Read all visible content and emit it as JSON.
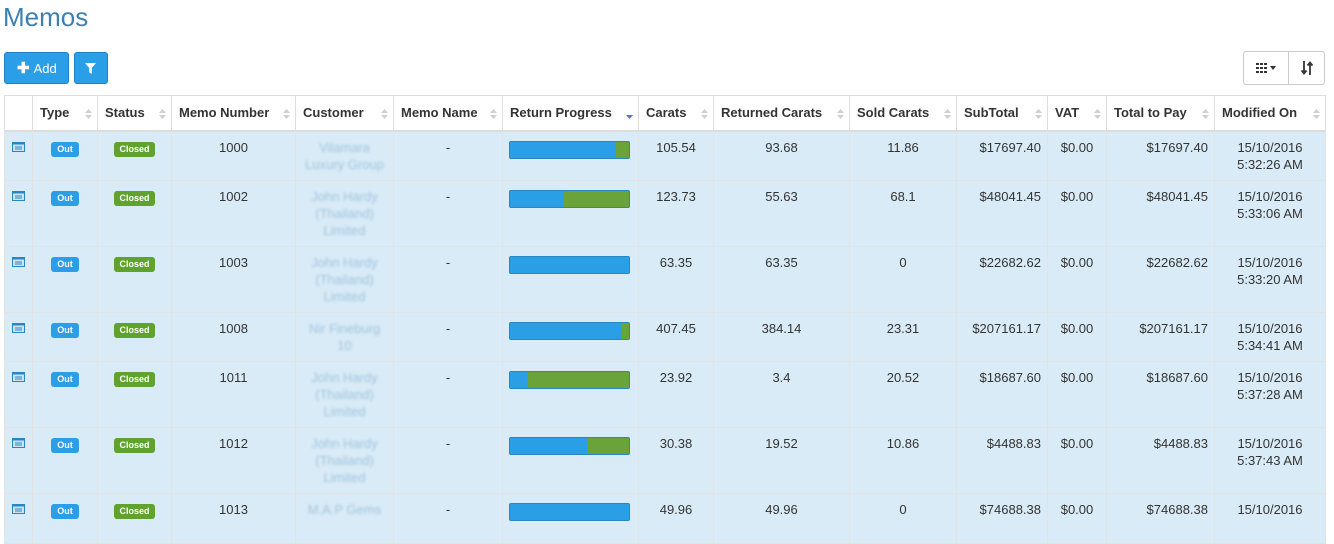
{
  "page": {
    "title": "Memos"
  },
  "toolbar": {
    "add_label": "Add",
    "add_icon": "plus-icon",
    "filter_icon": "filter-icon",
    "columns_icon": "grid-icon",
    "sort_icon": "sort-icon"
  },
  "columns": [
    "Type",
    "Status",
    "Memo Number",
    "Customer",
    "Memo Name",
    "Return Progress",
    "Carats",
    "Returned Carats",
    "Sold Carats",
    "SubTotal",
    "VAT",
    "Total to Pay",
    "Modified On"
  ],
  "sorted_column": "Return Progress",
  "colors": {
    "accent": "#2a9ee6",
    "closed": "#5fa32e",
    "row_bg": "#d9ebf6",
    "title": "#3e7fb2",
    "progress_returned": "#2b9fe6",
    "progress_sold": "#6aa33a"
  },
  "rows": [
    {
      "type": "Out",
      "status": "Closed",
      "memo_number": "1000",
      "customer": "Vilamara Luxury Group",
      "memo_name": "-",
      "returned_fraction": 0.888,
      "carats": "105.54",
      "returned_carats": "93.68",
      "sold_carats": "11.86",
      "subtotal": "$17697.40",
      "vat": "$0.00",
      "total": "$17697.40",
      "modified_date": "15/10/2016",
      "modified_time": "5:32:26 AM"
    },
    {
      "type": "Out",
      "status": "Closed",
      "memo_number": "1002",
      "customer": "John Hardy (Thailand) Limited",
      "memo_name": "-",
      "returned_fraction": 0.45,
      "carats": "123.73",
      "returned_carats": "55.63",
      "sold_carats": "68.1",
      "subtotal": "$48041.45",
      "vat": "$0.00",
      "total": "$48041.45",
      "modified_date": "15/10/2016",
      "modified_time": "5:33:06 AM"
    },
    {
      "type": "Out",
      "status": "Closed",
      "memo_number": "1003",
      "customer": "John Hardy (Thailand) Limited",
      "memo_name": "-",
      "returned_fraction": 1.0,
      "carats": "63.35",
      "returned_carats": "63.35",
      "sold_carats": "0",
      "subtotal": "$22682.62",
      "vat": "$0.00",
      "total": "$22682.62",
      "modified_date": "15/10/2016",
      "modified_time": "5:33:20 AM"
    },
    {
      "type": "Out",
      "status": "Closed",
      "memo_number": "1008",
      "customer": "Nir Fineburg 10",
      "memo_name": "-",
      "returned_fraction": 0.943,
      "carats": "407.45",
      "returned_carats": "384.14",
      "sold_carats": "23.31",
      "subtotal": "$207161.17",
      "vat": "$0.00",
      "total": "$207161.17",
      "modified_date": "15/10/2016",
      "modified_time": "5:34:41 AM"
    },
    {
      "type": "Out",
      "status": "Closed",
      "memo_number": "1011",
      "customer": "John Hardy (Thailand) Limited",
      "memo_name": "-",
      "returned_fraction": 0.142,
      "carats": "23.92",
      "returned_carats": "3.4",
      "sold_carats": "20.52",
      "subtotal": "$18687.60",
      "vat": "$0.00",
      "total": "$18687.60",
      "modified_date": "15/10/2016",
      "modified_time": "5:37:28 AM"
    },
    {
      "type": "Out",
      "status": "Closed",
      "memo_number": "1012",
      "customer": "John Hardy (Thailand) Limited",
      "memo_name": "-",
      "returned_fraction": 0.643,
      "carats": "30.38",
      "returned_carats": "19.52",
      "sold_carats": "10.86",
      "subtotal": "$4488.83",
      "vat": "$0.00",
      "total": "$4488.83",
      "modified_date": "15/10/2016",
      "modified_time": "5:37:43 AM"
    },
    {
      "type": "Out",
      "status": "Closed",
      "memo_number": "1013",
      "customer": "M.A.P Gems",
      "memo_name": "-",
      "returned_fraction": 1.0,
      "carats": "49.96",
      "returned_carats": "49.96",
      "sold_carats": "0",
      "subtotal": "$74688.38",
      "vat": "$0.00",
      "total": "$74688.38",
      "modified_date": "15/10/2016",
      "modified_time": ""
    }
  ]
}
